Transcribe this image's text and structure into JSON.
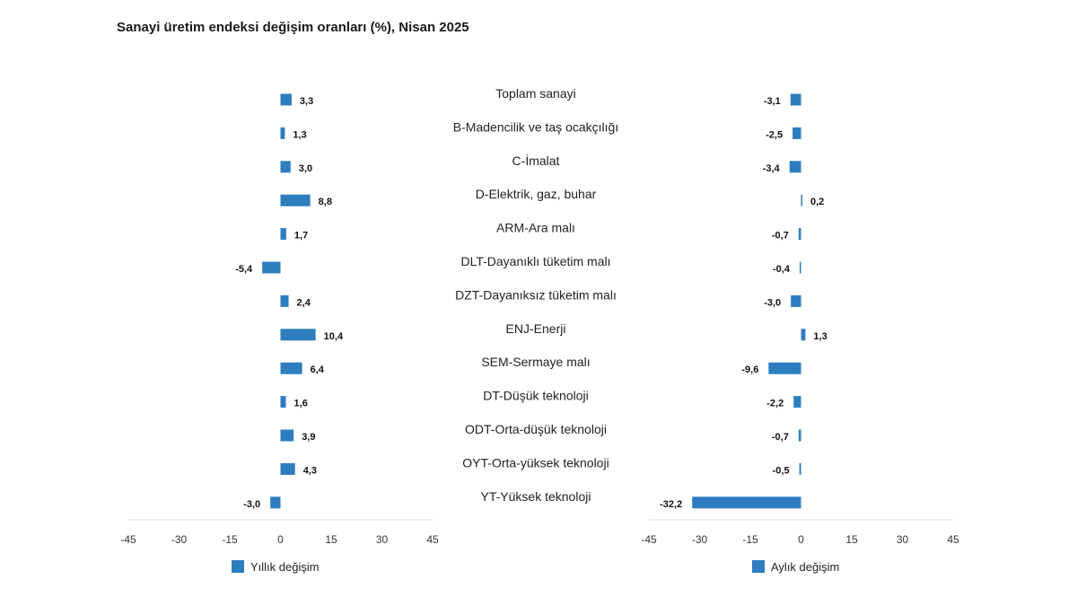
{
  "title": "Sanayi üretim endeksi değişim oranları (%), Nisan 2025",
  "colors": {
    "bar": "#2e7dbf",
    "axis": "#d9d9d9"
  },
  "chart_data": {
    "type": "bar",
    "orientation": "horizontal",
    "title": "Sanayi üretim endeksi değişim oranları (%), Nisan 2025",
    "categories": [
      "Toplam sanayi",
      "B-Madencilik ve taş ocakçılığı",
      "C-İmalat",
      "D-Elektrik, gaz, buhar",
      "ARM-Ara malı",
      "DLT-Dayanıklı tüketim malı",
      "DZT-Dayanıksız tüketim malı",
      "ENJ-Enerji",
      "SEM-Sermaye malı",
      "DT-Düşük teknoloji",
      "ODT-Orta-düşük teknoloji",
      "OYT-Orta-yüksek teknoloji",
      "YT-Yüksek teknoloji"
    ],
    "series": [
      {
        "name": "Yıllık değişim",
        "values": [
          3.3,
          1.3,
          3.0,
          8.8,
          1.7,
          -5.4,
          2.4,
          10.4,
          6.4,
          1.6,
          3.9,
          4.3,
          -3.0
        ],
        "labels": [
          "3,3",
          "1,3",
          "3,0",
          "8,8",
          "1,7",
          "-5,4",
          "2,4",
          "10,4",
          "6,4",
          "1,6",
          "3,9",
          "4,3",
          "-3,0"
        ]
      },
      {
        "name": "Aylık değişim",
        "values": [
          -3.1,
          -2.5,
          -3.4,
          0.2,
          -0.7,
          -0.4,
          -3.0,
          1.3,
          -9.6,
          -2.2,
          -0.7,
          -0.5,
          -32.2
        ],
        "labels": [
          "-3,1",
          "-2,5",
          "-3,4",
          "0,2",
          "-0,7",
          "-0,4",
          "-3,0",
          "1,3",
          "-9,6",
          "-2,2",
          "-0,7",
          "-0,5",
          "-32,2"
        ]
      }
    ],
    "xlim": [
      -45,
      45
    ],
    "ticks": [
      -45,
      -30,
      -15,
      0,
      15,
      30,
      45
    ],
    "tick_labels": [
      "-45",
      "-30",
      "-15",
      "0",
      "15",
      "30",
      "45"
    ],
    "legend_position": "bottom-left"
  }
}
